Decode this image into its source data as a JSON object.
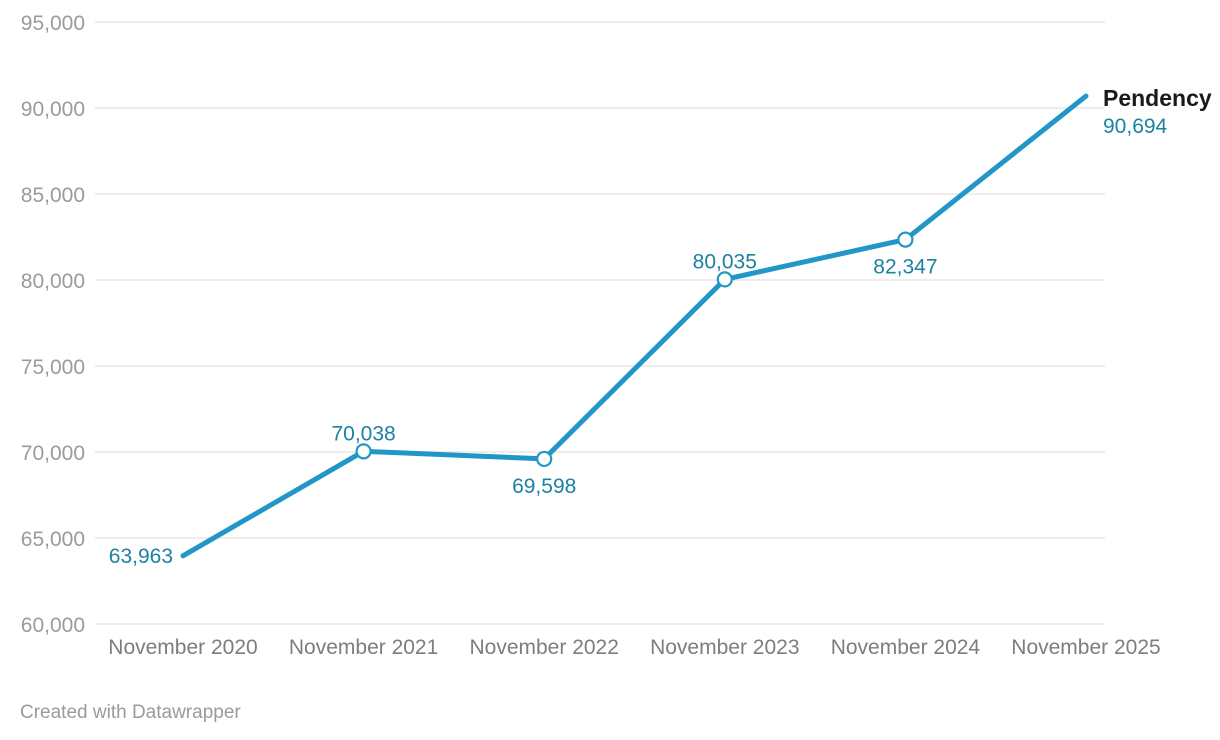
{
  "chart_data": {
    "type": "line",
    "title": "",
    "categories": [
      "November 2020",
      "November 2021",
      "November 2022",
      "November 2023",
      "November 2024",
      "November 2025"
    ],
    "series": [
      {
        "name": "Pendency",
        "values": [
          63963,
          70038,
          69598,
          80035,
          82347,
          90694
        ]
      }
    ],
    "value_labels": [
      "63,963",
      "70,038",
      "69,598",
      "80,035",
      "82,347",
      "90,694"
    ],
    "label_positions": [
      "left",
      "above",
      "below",
      "above",
      "below",
      "end"
    ],
    "markers": [
      false,
      true,
      true,
      true,
      true,
      false
    ],
    "y_ticks": [
      60000,
      65000,
      70000,
      75000,
      80000,
      85000,
      90000,
      95000
    ],
    "y_tick_labels": [
      "60,000",
      "65,000",
      "70,000",
      "75,000",
      "80,000",
      "85,000",
      "90,000",
      "95,000"
    ],
    "ylim": [
      60000,
      95000
    ],
    "grid": "horizontal",
    "legend_position": "end-of-line",
    "end_label": {
      "name": "Pendency",
      "value": "90,694"
    },
    "colors": {
      "line": "#2296C7",
      "value_label": "#1D81A2",
      "marker_fill": "#FFFFFF",
      "y_axis_label": "#9B9B9B",
      "x_axis_label": "#7D7D7D",
      "grid": "#E7E7E7",
      "end_label_name": "#1A1A1A"
    }
  },
  "footer": {
    "credit": "Created with Datawrapper"
  }
}
